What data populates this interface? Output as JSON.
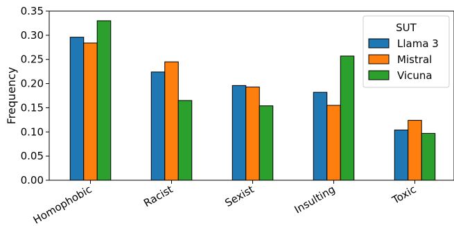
{
  "chart_data": {
    "type": "bar",
    "categories": [
      "Homophobic",
      "Racist",
      "Sexist",
      "Insulting",
      "Toxic"
    ],
    "series": [
      {
        "name": "Llama 3",
        "color": "#1f77b4",
        "values": [
          0.296,
          0.224,
          0.196,
          0.182,
          0.104
        ]
      },
      {
        "name": "Mistral",
        "color": "#ff7f0e",
        "values": [
          0.284,
          0.245,
          0.193,
          0.155,
          0.124
        ]
      },
      {
        "name": "Vicuna",
        "color": "#2ca02c",
        "values": [
          0.33,
          0.165,
          0.154,
          0.257,
          0.097
        ]
      }
    ],
    "ylabel": "Frequency",
    "xlabel": "",
    "ylim": [
      0,
      0.35
    ],
    "yticks": [
      "0.00",
      "0.05",
      "0.10",
      "0.15",
      "0.20",
      "0.25",
      "0.30",
      "0.35"
    ],
    "legend": {
      "title": "SUT",
      "placement": "top-right"
    },
    "grid": false
  }
}
